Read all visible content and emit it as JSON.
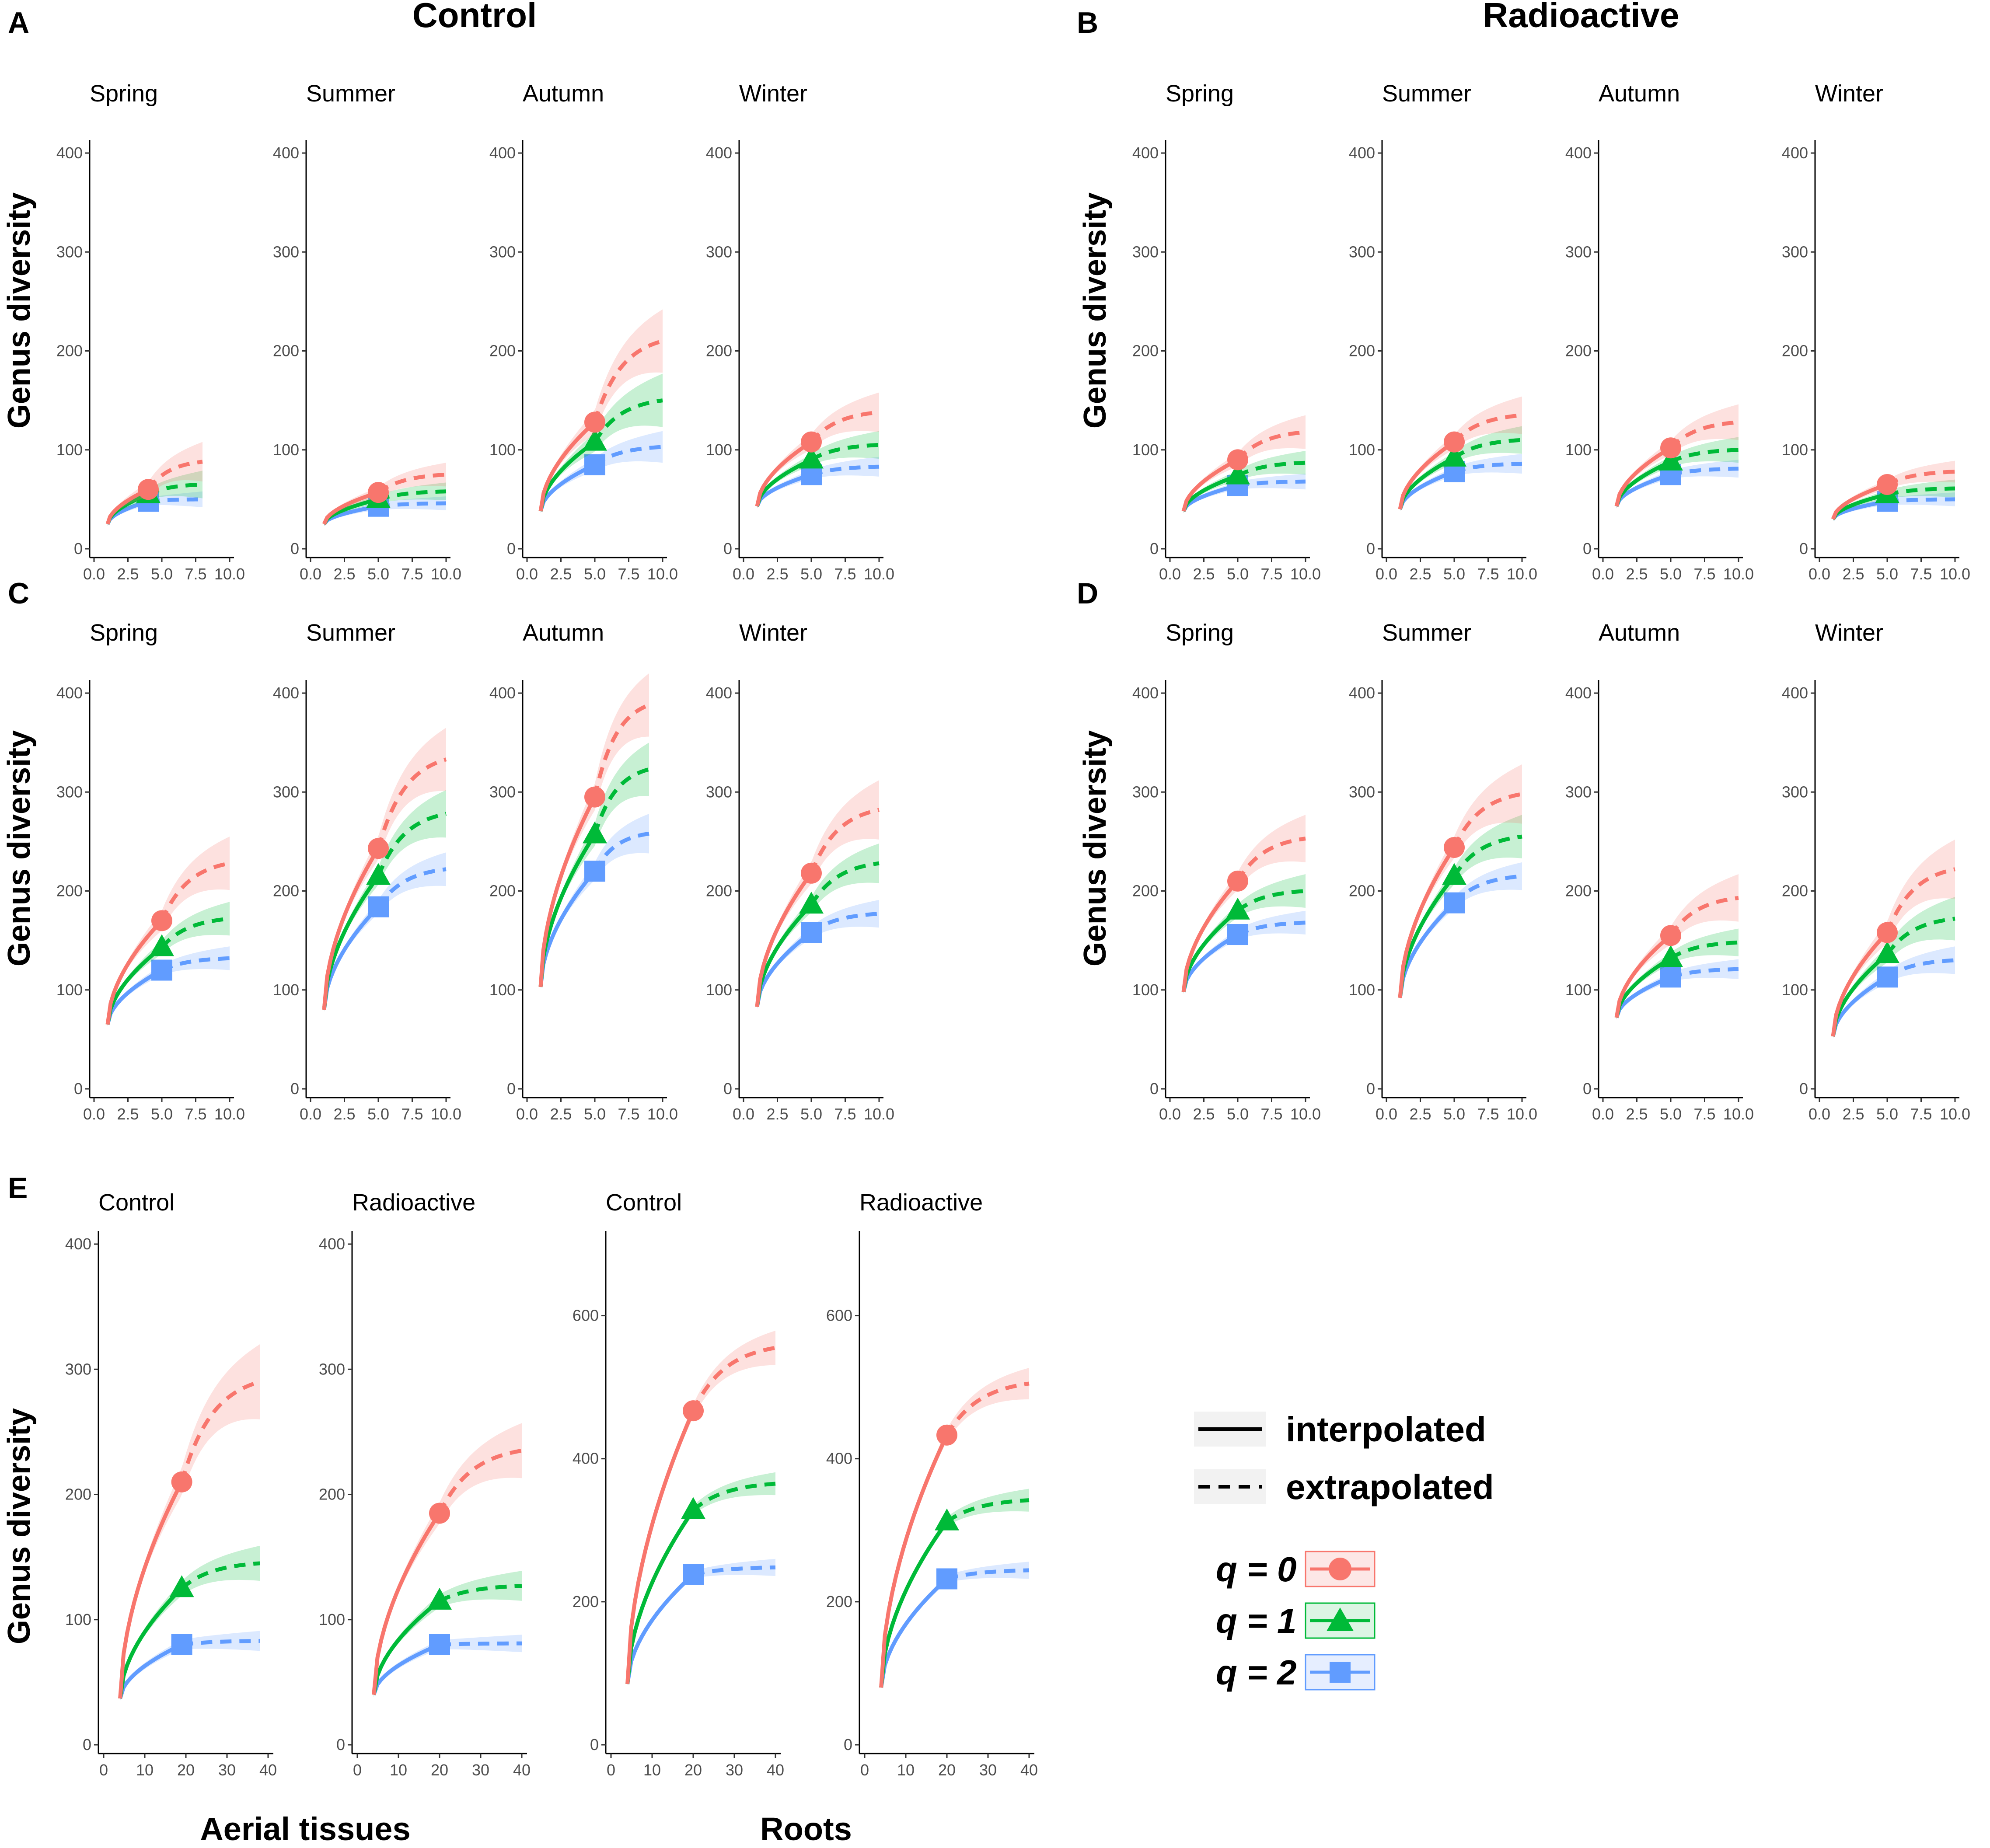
{
  "colors": {
    "q0": "#F8766D",
    "q1": "#00BA38",
    "q2": "#619CFF",
    "axis": "#000000",
    "tick_text": "#4d4d4d"
  },
  "groups": {
    "A": "Control",
    "B": "Radioactive"
  },
  "letters": {
    "A": "A",
    "B": "B",
    "C": "C",
    "D": "D",
    "E": "E"
  },
  "y_axis_title": "Genus diversity",
  "x_titles": {
    "aerial": "Aerial tissues",
    "roots": "Roots"
  },
  "legend": {
    "interpolated": "interpolated",
    "extrapolated": "extrapolated",
    "q0": "q = 0",
    "q1": "q = 1",
    "q2": "q = 2"
  },
  "chart_data": [
    {
      "panel": "A",
      "type": "line",
      "group": "Control",
      "ylim": [
        0,
        400
      ],
      "xlim": [
        0,
        10
      ],
      "yticks": [
        0,
        100,
        200,
        300,
        400
      ],
      "xticks": [
        "0.0",
        "2.5",
        "5.0",
        "7.5",
        "10.0"
      ],
      "facets": [
        {
          "title": "Spring",
          "n_ref": 4,
          "start": 25,
          "ref": [
            60,
            55,
            48
          ],
          "end": [
            88,
            65,
            50
          ],
          "ci_end": [
            18,
            12,
            6
          ],
          "x_max": 8
        },
        {
          "title": "Summer",
          "n_ref": 5,
          "start": 25,
          "ref": [
            57,
            50,
            43
          ],
          "end": [
            75,
            58,
            46
          ],
          "ci_end": [
            10,
            7,
            5
          ],
          "x_max": 10
        },
        {
          "title": "Autumn",
          "n_ref": 5,
          "start": 38,
          "ref": [
            128,
            108,
            85
          ],
          "end": [
            210,
            150,
            103
          ],
          "ci_end": [
            30,
            25,
            14
          ],
          "x_max": 10
        },
        {
          "title": "Winter",
          "n_ref": 5,
          "start": 43,
          "ref": [
            108,
            90,
            75
          ],
          "end": [
            138,
            105,
            83
          ],
          "ci_end": [
            18,
            12,
            8
          ],
          "x_max": 10
        }
      ]
    },
    {
      "panel": "B",
      "type": "line",
      "group": "Radioactive",
      "ylim": [
        0,
        400
      ],
      "xlim": [
        0,
        10
      ],
      "yticks": [
        0,
        100,
        200,
        300,
        400
      ],
      "xticks": [
        "0.0",
        "2.5",
        "5.0",
        "7.5",
        "10.0"
      ],
      "facets": [
        {
          "title": "Spring",
          "n_ref": 5,
          "start": 38,
          "ref": [
            90,
            74,
            64
          ],
          "end": [
            118,
            87,
            68
          ],
          "ci_end": [
            15,
            10,
            6
          ],
          "x_max": 10
        },
        {
          "title": "Summer",
          "n_ref": 5,
          "start": 40,
          "ref": [
            108,
            92,
            78
          ],
          "end": [
            135,
            110,
            86
          ],
          "ci_end": [
            17,
            12,
            8
          ],
          "x_max": 10
        },
        {
          "title": "Autumn",
          "n_ref": 5,
          "start": 43,
          "ref": [
            102,
            88,
            75
          ],
          "end": [
            128,
            100,
            81
          ],
          "ci_end": [
            16,
            11,
            7
          ],
          "x_max": 10
        },
        {
          "title": "Winter",
          "n_ref": 5,
          "start": 30,
          "ref": [
            65,
            55,
            48
          ],
          "end": [
            78,
            61,
            50
          ],
          "ci_end": [
            9,
            7,
            5
          ],
          "x_max": 10
        }
      ]
    },
    {
      "panel": "C",
      "type": "line",
      "group": "Control",
      "ylim": [
        0,
        400
      ],
      "xlim": [
        0,
        10
      ],
      "yticks": [
        0,
        100,
        200,
        300,
        400
      ],
      "xticks": [
        "0.0",
        "2.5",
        "5.0",
        "7.5",
        "10.0"
      ],
      "facets": [
        {
          "title": "Spring",
          "n_ref": 5,
          "start": 65,
          "ref": [
            170,
            143,
            120
          ],
          "end": [
            228,
            172,
            132
          ],
          "ci_end": [
            25,
            15,
            10
          ],
          "x_max": 10
        },
        {
          "title": "Summer",
          "n_ref": 5,
          "start": 80,
          "ref": [
            243,
            215,
            184
          ],
          "end": [
            333,
            278,
            222
          ],
          "ci_end": [
            30,
            22,
            15
          ],
          "x_max": 10
        },
        {
          "title": "Autumn",
          "n_ref": 5,
          "start": 103,
          "ref": [
            295,
            257,
            220
          ],
          "end": [
            388,
            323,
            258
          ],
          "ci_end": [
            30,
            25,
            18
          ],
          "x_max": 9
        },
        {
          "title": "Winter",
          "n_ref": 5,
          "start": 83,
          "ref": [
            218,
            186,
            158
          ],
          "end": [
            282,
            228,
            177
          ],
          "ci_end": [
            28,
            18,
            12
          ],
          "x_max": 10
        }
      ]
    },
    {
      "panel": "D",
      "type": "line",
      "group": "Radioactive",
      "ylim": [
        0,
        400
      ],
      "xlim": [
        0,
        10
      ],
      "yticks": [
        0,
        100,
        200,
        300,
        400
      ],
      "xticks": [
        "0.0",
        "2.5",
        "5.0",
        "7.5",
        "10.0"
      ],
      "facets": [
        {
          "title": "Spring",
          "n_ref": 5,
          "start": 98,
          "ref": [
            210,
            180,
            156
          ],
          "end": [
            253,
            200,
            168
          ],
          "ci_end": [
            22,
            15,
            10
          ],
          "x_max": 10
        },
        {
          "title": "Summer",
          "n_ref": 5,
          "start": 92,
          "ref": [
            244,
            215,
            188
          ],
          "end": [
            298,
            255,
            215
          ],
          "ci_end": [
            28,
            20,
            12
          ],
          "x_max": 10
        },
        {
          "title": "Autumn",
          "n_ref": 5,
          "start": 72,
          "ref": [
            155,
            132,
            113
          ],
          "end": [
            193,
            148,
            121
          ],
          "ci_end": [
            22,
            12,
            8
          ],
          "x_max": 10
        },
        {
          "title": "Winter",
          "n_ref": 5,
          "start": 53,
          "ref": [
            158,
            136,
            113
          ],
          "end": [
            222,
            172,
            130
          ],
          "ci_end": [
            28,
            20,
            12
          ],
          "x_max": 10
        }
      ]
    },
    {
      "panel": "E",
      "type": "line",
      "facets": [
        {
          "title": "Control",
          "ylim": [
            0,
            400
          ],
          "yticks": [
            0,
            100,
            200,
            300,
            400
          ],
          "xlim": [
            0,
            40
          ],
          "xticks": [
            "0",
            "10",
            "20",
            "30",
            "40"
          ],
          "n_ref": 19,
          "start": 37,
          "ref": [
            210,
            125,
            80
          ],
          "end": [
            290,
            145,
            83
          ],
          "ci_end": [
            28,
            12,
            6
          ],
          "x_max": 38
        },
        {
          "title": "Radioactive",
          "ylim": [
            0,
            400
          ],
          "yticks": [
            0,
            100,
            200,
            300,
            400
          ],
          "xlim": [
            0,
            40
          ],
          "xticks": [
            "0",
            "10",
            "20",
            "30",
            "40"
          ],
          "n_ref": 20,
          "start": 40,
          "ref": [
            185,
            115,
            80
          ],
          "end": [
            235,
            127,
            81
          ],
          "ci_end": [
            20,
            10,
            5
          ],
          "x_max": 40
        },
        {
          "title": "Control",
          "ylim": [
            0,
            700
          ],
          "yticks": [
            0,
            200,
            400,
            600
          ],
          "xlim": [
            0,
            40
          ],
          "xticks": [
            "0",
            "10",
            "20",
            "30",
            "40"
          ],
          "n_ref": 20,
          "start": 85,
          "ref": [
            467,
            328,
            238
          ],
          "end": [
            555,
            365,
            248
          ],
          "ci_end": [
            22,
            14,
            10
          ],
          "x_max": 40
        },
        {
          "title": "Radioactive",
          "ylim": [
            0,
            700
          ],
          "yticks": [
            0,
            200,
            400,
            600
          ],
          "xlim": [
            0,
            40
          ],
          "xticks": [
            "0",
            "10",
            "20",
            "30",
            "40"
          ],
          "n_ref": 20,
          "start": 80,
          "ref": [
            433,
            312,
            232
          ],
          "end": [
            505,
            342,
            244
          ],
          "ci_end": [
            20,
            14,
            10
          ],
          "x_max": 40
        }
      ]
    }
  ]
}
